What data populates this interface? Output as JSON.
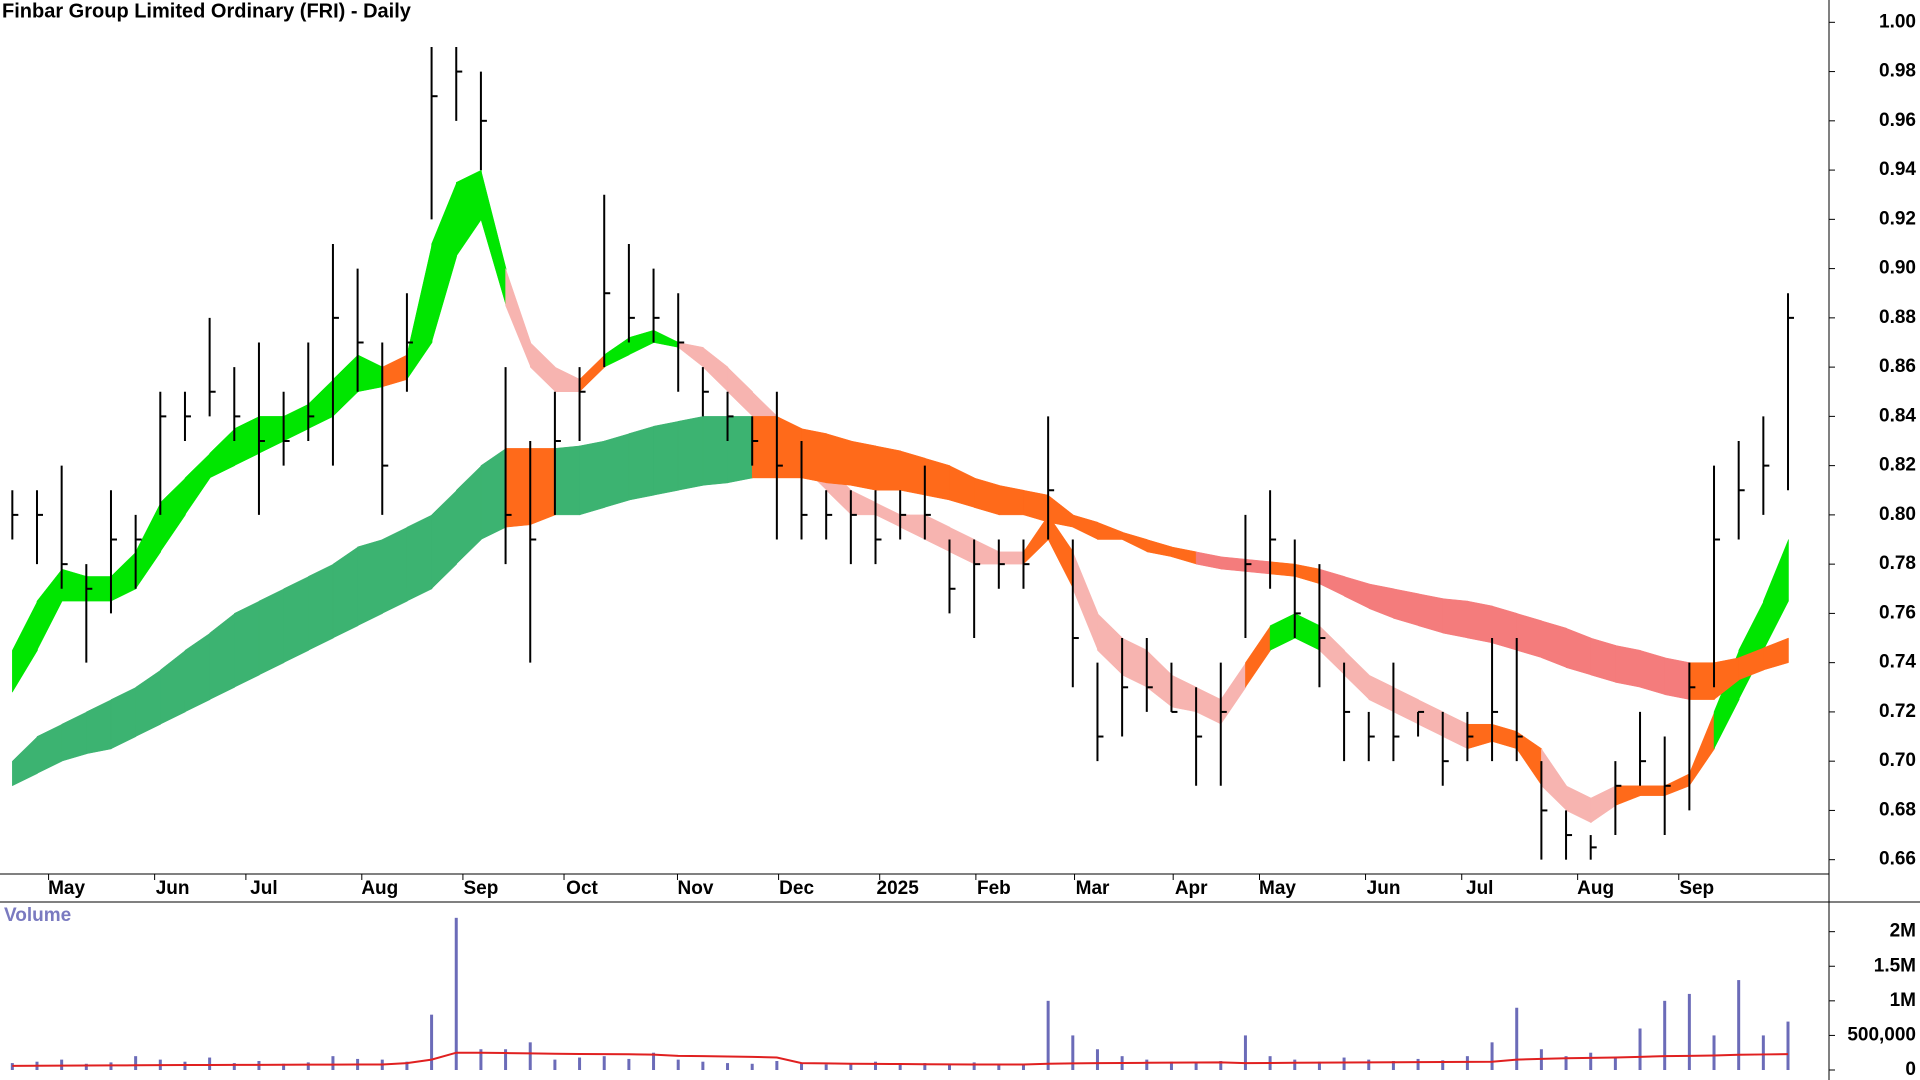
{
  "chart_data": [
    {
      "type": "ohlc",
      "title": "Finbar Group Limited Ordinary (FRI) - Daily",
      "x": [
        0,
        1,
        2,
        3,
        4,
        5,
        6,
        7,
        8,
        9,
        10,
        11,
        12,
        13,
        14,
        15,
        16,
        17,
        18,
        19,
        20,
        21,
        22,
        23,
        24,
        25,
        26,
        27,
        28,
        29,
        30,
        31,
        32,
        33,
        34,
        35,
        36,
        37,
        38,
        39,
        40,
        41,
        42,
        43,
        44,
        45,
        46,
        47,
        48,
        49,
        50,
        51,
        52,
        53,
        54,
        55,
        56,
        57,
        58,
        59,
        60,
        61,
        62,
        63,
        64,
        65,
        66,
        67,
        68,
        69,
        70,
        71,
        72
      ],
      "xlim": [
        -0.5,
        73.5
      ],
      "xticks": [
        {
          "value": 2.2,
          "label": "May"
        },
        {
          "value": 6.5,
          "label": "Jun"
        },
        {
          "value": 10.2,
          "label": "Jul"
        },
        {
          "value": 14.9,
          "label": "Aug"
        },
        {
          "value": 19,
          "label": "Sep"
        },
        {
          "value": 23.1,
          "label": "Oct"
        },
        {
          "value": 27.7,
          "label": "Nov"
        },
        {
          "value": 31.8,
          "label": "Dec"
        },
        {
          "value": 35.9,
          "label": "2025"
        },
        {
          "value": 39.8,
          "label": "Feb"
        },
        {
          "value": 43.8,
          "label": "Mar"
        },
        {
          "value": 47.8,
          "label": "Apr"
        },
        {
          "value": 51.3,
          "label": "May"
        },
        {
          "value": 55.6,
          "label": "Jun"
        },
        {
          "value": 59.5,
          "label": "Jul"
        },
        {
          "value": 64.2,
          "label": "Aug"
        },
        {
          "value": 68.3,
          "label": "Sep"
        }
      ],
      "ylim": [
        0.655,
        1.005
      ],
      "yticks": [
        0.66,
        0.68,
        {
          "value": 0.7,
          "label": "0.70"
        },
        0.72,
        0.74,
        0.76,
        0.78,
        {
          "value": 0.8,
          "label": "0.80"
        },
        0.82,
        0.84,
        0.86,
        0.88,
        {
          "value": 0.9,
          "label": "0.90"
        },
        0.92,
        0.94,
        0.96,
        0.98,
        {
          "value": 1.0,
          "label": "1.00"
        }
      ],
      "color": "#000000",
      "high": [
        0.81,
        0.81,
        0.82,
        0.78,
        0.81,
        0.8,
        0.85,
        0.85,
        0.88,
        0.86,
        0.87,
        0.85,
        0.87,
        0.91,
        0.9,
        0.87,
        0.89,
        0.99,
        0.99,
        0.98,
        0.86,
        0.83,
        0.85,
        0.86,
        0.93,
        0.91,
        0.9,
        0.89,
        0.86,
        0.85,
        0.84,
        0.85,
        0.83,
        0.81,
        0.81,
        0.81,
        0.81,
        0.82,
        0.79,
        0.79,
        0.79,
        0.79,
        0.84,
        0.79,
        0.74,
        0.75,
        0.75,
        0.74,
        0.73,
        0.74,
        0.8,
        0.81,
        0.79,
        0.78,
        0.74,
        0.72,
        0.74,
        0.72,
        0.72,
        0.72,
        0.75,
        0.75,
        0.7,
        0.68,
        0.67,
        0.7,
        0.72,
        0.71,
        0.74,
        0.82,
        0.83,
        0.84,
        0.89
      ],
      "low": [
        0.79,
        0.78,
        0.77,
        0.74,
        0.76,
        0.77,
        0.8,
        0.83,
        0.84,
        0.83,
        0.8,
        0.82,
        0.83,
        0.82,
        0.85,
        0.8,
        0.85,
        0.92,
        0.96,
        0.94,
        0.78,
        0.74,
        0.8,
        0.83,
        0.86,
        0.87,
        0.87,
        0.85,
        0.84,
        0.83,
        0.82,
        0.79,
        0.79,
        0.79,
        0.78,
        0.78,
        0.79,
        0.79,
        0.76,
        0.75,
        0.77,
        0.77,
        0.79,
        0.73,
        0.7,
        0.71,
        0.72,
        0.72,
        0.69,
        0.69,
        0.75,
        0.77,
        0.75,
        0.73,
        0.7,
        0.7,
        0.7,
        0.71,
        0.69,
        0.7,
        0.7,
        0.7,
        0.66,
        0.66,
        0.66,
        0.67,
        0.69,
        0.67,
        0.68,
        0.73,
        0.79,
        0.8,
        0.81
      ],
      "close": [
        0.8,
        0.8,
        0.78,
        0.77,
        0.79,
        0.79,
        0.84,
        0.84,
        0.85,
        0.84,
        0.83,
        0.83,
        0.84,
        0.88,
        0.87,
        0.82,
        0.87,
        0.97,
        0.98,
        0.96,
        0.8,
        0.79,
        0.83,
        0.85,
        0.89,
        0.88,
        0.88,
        0.87,
        0.85,
        0.84,
        0.83,
        0.82,
        0.8,
        0.8,
        0.8,
        0.79,
        0.8,
        0.8,
        0.77,
        0.78,
        0.78,
        0.78,
        0.81,
        0.75,
        0.71,
        0.73,
        0.73,
        0.72,
        0.71,
        0.72,
        0.78,
        0.79,
        0.76,
        0.75,
        0.72,
        0.71,
        0.71,
        0.72,
        0.7,
        0.71,
        0.72,
        0.71,
        0.68,
        0.67,
        0.665,
        0.69,
        0.7,
        0.69,
        0.73,
        0.79,
        0.81,
        0.82,
        0.88
      ],
      "ribbons": [
        {
          "upper": [
            0.745,
            0.765,
            0.778,
            0.775,
            0.775,
            0.785,
            0.805,
            0.815,
            0.825,
            0.835,
            0.84,
            0.84,
            0.845,
            0.855,
            0.865,
            0.86,
            0.865,
            0.91,
            0.935,
            0.94,
            0.9,
            0.87,
            0.86,
            0.855,
            0.865,
            0.872,
            0.875,
            0.87,
            0.868,
            0.86,
            0.85,
            0.84,
            0.83,
            0.82,
            0.81,
            0.805,
            0.8,
            0.8,
            0.795,
            0.79,
            0.785,
            0.785,
            0.8,
            0.785,
            0.76,
            0.75,
            0.745,
            0.735,
            0.73,
            0.725,
            0.74,
            0.755,
            0.76,
            0.755,
            0.745,
            0.735,
            0.73,
            0.725,
            0.72,
            0.715,
            0.715,
            0.712,
            0.705,
            0.69,
            0.685,
            0.69,
            0.69,
            0.69,
            0.695,
            0.72,
            0.745,
            0.765,
            0.79
          ],
          "lower": [
            0.728,
            0.745,
            0.765,
            0.765,
            0.765,
            0.77,
            0.785,
            0.8,
            0.815,
            0.82,
            0.825,
            0.83,
            0.835,
            0.84,
            0.85,
            0.852,
            0.855,
            0.87,
            0.905,
            0.92,
            0.885,
            0.86,
            0.85,
            0.85,
            0.86,
            0.865,
            0.87,
            0.868,
            0.86,
            0.85,
            0.84,
            0.83,
            0.82,
            0.81,
            0.8,
            0.8,
            0.795,
            0.79,
            0.785,
            0.78,
            0.78,
            0.78,
            0.79,
            0.77,
            0.745,
            0.735,
            0.73,
            0.722,
            0.72,
            0.715,
            0.73,
            0.745,
            0.75,
            0.745,
            0.735,
            0.725,
            0.72,
            0.715,
            0.71,
            0.705,
            0.708,
            0.705,
            0.69,
            0.68,
            0.675,
            0.682,
            0.686,
            0.686,
            0.69,
            0.705,
            0.725,
            0.745,
            0.765
          ],
          "colors": [
            "#00e600",
            "#00e600",
            "#00e600",
            "#00e600",
            "#00e600",
            "#00e600",
            "#00e600",
            "#00e600",
            "#00e600",
            "#00e600",
            "#00e600",
            "#00e600",
            "#00e600",
            "#00e600",
            "#00e600",
            "#ff6a1a",
            "#00e600",
            "#00e600",
            "#00e600",
            "#00e600",
            "#f7b4b0",
            "#f7b4b0",
            "#f7b4b0",
            "#ff6a1a",
            "#00e600",
            "#00e600",
            "#00e600",
            "#f7b4b0",
            "#f7b4b0",
            "#f7b4b0",
            "#f7b4b0",
            "#f7b4b0",
            "#f7b4b0",
            "#f7b4b0",
            "#f7b4b0",
            "#f7b4b0",
            "#f7b4b0",
            "#f7b4b0",
            "#f7b4b0",
            "#f7b4b0",
            "#f7b4b0",
            "#ff6a1a",
            "#ff6a1a",
            "#f7b4b0",
            "#f7b4b0",
            "#f7b4b0",
            "#f7b4b0",
            "#f7b4b0",
            "#f7b4b0",
            "#f7b4b0",
            "#ff6a1a",
            "#00e600",
            "#00e600",
            "#f7b4b0",
            "#f7b4b0",
            "#f7b4b0",
            "#f7b4b0",
            "#f7b4b0",
            "#f7b4b0",
            "#ff6a1a",
            "#ff6a1a",
            "#ff6a1a",
            "#f7b4b0",
            "#f7b4b0",
            "#f7b4b0",
            "#ff6a1a",
            "#ff6a1a",
            "#ff6a1a",
            "#ff6a1a",
            "#00e600",
            "#00e600",
            "#00e600",
            "#00e600"
          ]
        },
        {
          "upper": [
            0.7,
            0.71,
            0.715,
            0.72,
            0.725,
            0.73,
            0.737,
            0.745,
            0.752,
            0.76,
            0.765,
            0.77,
            0.775,
            0.78,
            0.787,
            0.79,
            0.795,
            0.8,
            0.81,
            0.82,
            0.827,
            0.827,
            0.827,
            0.828,
            0.83,
            0.833,
            0.836,
            0.838,
            0.84,
            0.84,
            0.84,
            0.84,
            0.835,
            0.833,
            0.83,
            0.828,
            0.826,
            0.823,
            0.82,
            0.815,
            0.812,
            0.81,
            0.808,
            0.8,
            0.797,
            0.793,
            0.79,
            0.787,
            0.785,
            0.783,
            0.782,
            0.781,
            0.78,
            0.778,
            0.775,
            0.772,
            0.77,
            0.768,
            0.766,
            0.765,
            0.763,
            0.76,
            0.757,
            0.754,
            0.75,
            0.747,
            0.745,
            0.742,
            0.74,
            0.74,
            0.742,
            0.746,
            0.75
          ],
          "lower": [
            0.69,
            0.695,
            0.7,
            0.703,
            0.705,
            0.71,
            0.715,
            0.72,
            0.725,
            0.73,
            0.735,
            0.74,
            0.745,
            0.75,
            0.755,
            0.76,
            0.765,
            0.77,
            0.78,
            0.79,
            0.795,
            0.796,
            0.8,
            0.8,
            0.803,
            0.806,
            0.808,
            0.81,
            0.812,
            0.813,
            0.815,
            0.815,
            0.815,
            0.813,
            0.812,
            0.81,
            0.81,
            0.808,
            0.806,
            0.803,
            0.8,
            0.8,
            0.797,
            0.795,
            0.79,
            0.79,
            0.785,
            0.783,
            0.78,
            0.778,
            0.777,
            0.776,
            0.775,
            0.772,
            0.767,
            0.762,
            0.758,
            0.755,
            0.752,
            0.75,
            0.748,
            0.745,
            0.742,
            0.738,
            0.735,
            0.732,
            0.73,
            0.727,
            0.725,
            0.725,
            0.733,
            0.737,
            0.74
          ],
          "colors": [
            "#3cb371",
            "#3cb371",
            "#3cb371",
            "#3cb371",
            "#3cb371",
            "#3cb371",
            "#3cb371",
            "#3cb371",
            "#3cb371",
            "#3cb371",
            "#3cb371",
            "#3cb371",
            "#3cb371",
            "#3cb371",
            "#3cb371",
            "#3cb371",
            "#3cb371",
            "#3cb371",
            "#3cb371",
            "#3cb371",
            "#ff6a1a",
            "#ff6a1a",
            "#3cb371",
            "#3cb371",
            "#3cb371",
            "#3cb371",
            "#3cb371",
            "#3cb371",
            "#3cb371",
            "#3cb371",
            "#ff6a1a",
            "#ff6a1a",
            "#ff6a1a",
            "#ff6a1a",
            "#ff6a1a",
            "#ff6a1a",
            "#ff6a1a",
            "#ff6a1a",
            "#ff6a1a",
            "#ff6a1a",
            "#ff6a1a",
            "#ff6a1a",
            "#ff6a1a",
            "#ff6a1a",
            "#ff6a1a",
            "#ff6a1a",
            "#ff6a1a",
            "#ff6a1a",
            "#f47c7c",
            "#f47c7c",
            "#f47c7c",
            "#ff6a1a",
            "#ff6a1a",
            "#f47c7c",
            "#f47c7c",
            "#f47c7c",
            "#f47c7c",
            "#f47c7c",
            "#f47c7c",
            "#f47c7c",
            "#f47c7c",
            "#f47c7c",
            "#f47c7c",
            "#f47c7c",
            "#f47c7c",
            "#f47c7c",
            "#f47c7c",
            "#f47c7c",
            "#ff6a1a",
            "#ff6a1a",
            "#ff6a1a",
            "#ff6a1a",
            "#ff6a1a"
          ]
        }
      ]
    },
    {
      "type": "volume",
      "title": "Volume",
      "ylim": [
        0,
        2400000
      ],
      "yticks": [
        0,
        {
          "value": 500000,
          "label": "500,000"
        },
        {
          "value": 1000000,
          "label": "1M"
        },
        {
          "value": 1500000,
          "label": "1.5M"
        },
        {
          "value": 2000000,
          "label": "2M"
        }
      ],
      "color": "#6b6bb8",
      "values": [
        100000,
        120000,
        150000,
        90000,
        110000,
        200000,
        150000,
        120000,
        180000,
        100000,
        130000,
        90000,
        110000,
        200000,
        160000,
        150000,
        120000,
        800000,
        2200000,
        300000,
        300000,
        400000,
        150000,
        180000,
        200000,
        160000,
        250000,
        150000,
        120000,
        100000,
        90000,
        130000,
        100000,
        80000,
        90000,
        120000,
        80000,
        100000,
        90000,
        110000,
        90000,
        80000,
        1000000,
        500000,
        300000,
        200000,
        150000,
        120000,
        100000,
        130000,
        500000,
        200000,
        150000,
        120000,
        180000,
        150000,
        130000,
        160000,
        140000,
        200000,
        400000,
        900000,
        300000,
        200000,
        250000,
        180000,
        600000,
        1000000,
        1100000,
        500000,
        1300000,
        500000,
        700000
      ],
      "ma": {
        "color": "#e02020",
        "values": [
          60000,
          62000,
          64000,
          65000,
          66000,
          68000,
          70000,
          72000,
          73000,
          74000,
          75000,
          76000,
          77000,
          78000,
          80000,
          80000,
          100000,
          150000,
          250000,
          250000,
          245000,
          240000,
          235000,
          232000,
          230000,
          228000,
          222000,
          205000,
          200000,
          195000,
          190000,
          180000,
          100000,
          95000,
          90000,
          88000,
          86000,
          84000,
          82000,
          80000,
          80000,
          80000,
          90000,
          95000,
          100000,
          102000,
          104000,
          106000,
          108000,
          110000,
          100000,
          102000,
          104000,
          106000,
          108000,
          110000,
          112000,
          114000,
          116000,
          118000,
          120000,
          150000,
          160000,
          170000,
          175000,
          180000,
          190000,
          200000,
          205000,
          210000,
          220000,
          225000,
          230000
        ]
      }
    }
  ]
}
